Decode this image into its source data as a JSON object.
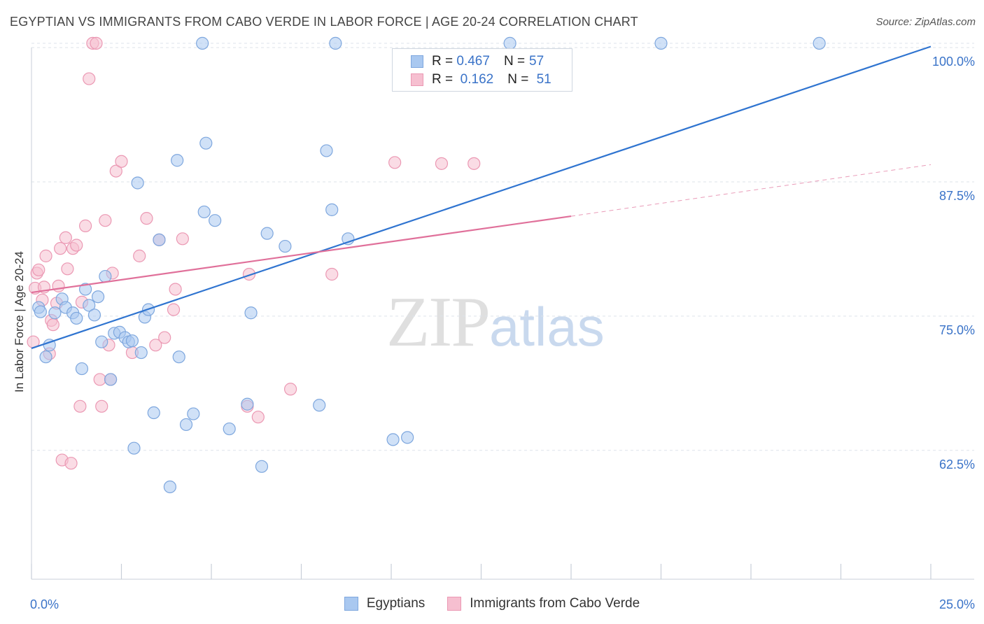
{
  "header": {
    "title": "EGYPTIAN VS IMMIGRANTS FROM CABO VERDE IN LABOR FORCE | AGE 20-24 CORRELATION CHART",
    "source": "Source: ZipAtlas.com"
  },
  "watermark": {
    "zip": "ZIP",
    "atlas": "atlas"
  },
  "legend": {
    "rows": [
      {
        "r_label": "R =",
        "r_value": "0.467",
        "n_label": "N =",
        "n_value": "57"
      },
      {
        "r_label": "R =",
        "r_value": "0.162",
        "n_label": "N =",
        "n_value": "51"
      }
    ]
  },
  "bottom_legend": {
    "egyptians": "Egyptians",
    "cabo_verde": "Immigrants from Cabo Verde"
  },
  "colors": {
    "blue_fill": "#a9c8f0",
    "blue_stroke": "#7ea7de",
    "blue_line": "#2f74d0",
    "pink_fill": "#f6bfd0",
    "pink_stroke": "#eb98b3",
    "pink_line": "#e0709a",
    "tick_label": "#3a73c8",
    "grid": "#dde3ea"
  },
  "chart_data": {
    "type": "scatter",
    "title": "EGYPTIAN VS IMMIGRANTS FROM CABO VERDE IN LABOR FORCE | AGE 20-24 CORRELATION CHART",
    "xlabel": "",
    "ylabel": "In Labor Force | Age 20-24",
    "xlim": [
      0,
      25
    ],
    "ylim": [
      50.5,
      101.5
    ],
    "x_tick_labels": [
      {
        "value": 0,
        "label": "0.0%"
      },
      {
        "value": 25,
        "label": "25.0%"
      }
    ],
    "y_ticks": [
      {
        "value": 62.5,
        "label": "62.5%"
      },
      {
        "value": 75.0,
        "label": "75.0%"
      },
      {
        "value": 87.5,
        "label": "87.5%"
      },
      {
        "value": 100.0,
        "label": "100.0%"
      }
    ],
    "grid": true,
    "legend_position": "top-center",
    "series": [
      {
        "name": "Egyptians",
        "color": "#a9c8f0",
        "trend": {
          "x": [
            0,
            25
          ],
          "y": [
            72.0,
            100.1
          ]
        },
        "points": [
          {
            "x": 0.2,
            "y": 75.8
          },
          {
            "x": 0.25,
            "y": 75.4
          },
          {
            "x": 0.4,
            "y": 71.2
          },
          {
            "x": 0.5,
            "y": 72.3
          },
          {
            "x": 0.65,
            "y": 75.3
          },
          {
            "x": 0.85,
            "y": 76.6
          },
          {
            "x": 0.95,
            "y": 75.8
          },
          {
            "x": 1.15,
            "y": 75.3
          },
          {
            "x": 1.25,
            "y": 74.8
          },
          {
            "x": 1.4,
            "y": 70.1
          },
          {
            "x": 1.5,
            "y": 77.5
          },
          {
            "x": 1.6,
            "y": 76.0
          },
          {
            "x": 1.75,
            "y": 75.1
          },
          {
            "x": 1.85,
            "y": 76.8
          },
          {
            "x": 1.95,
            "y": 72.6
          },
          {
            "x": 2.05,
            "y": 78.7
          },
          {
            "x": 2.2,
            "y": 69.1
          },
          {
            "x": 2.3,
            "y": 73.4
          },
          {
            "x": 2.45,
            "y": 73.5
          },
          {
            "x": 2.6,
            "y": 73.0
          },
          {
            "x": 2.7,
            "y": 72.6
          },
          {
            "x": 2.8,
            "y": 72.7
          },
          {
            "x": 2.85,
            "y": 62.7
          },
          {
            "x": 2.95,
            "y": 87.4
          },
          {
            "x": 3.05,
            "y": 71.6
          },
          {
            "x": 3.15,
            "y": 74.9
          },
          {
            "x": 3.25,
            "y": 75.6
          },
          {
            "x": 3.4,
            "y": 66.0
          },
          {
            "x": 3.55,
            "y": 82.1
          },
          {
            "x": 3.85,
            "y": 59.1
          },
          {
            "x": 4.05,
            "y": 89.5
          },
          {
            "x": 4.1,
            "y": 71.2
          },
          {
            "x": 4.3,
            "y": 64.9
          },
          {
            "x": 4.5,
            "y": 65.9
          },
          {
            "x": 4.75,
            "y": 100.4
          },
          {
            "x": 4.8,
            "y": 84.7
          },
          {
            "x": 4.85,
            "y": 91.1
          },
          {
            "x": 5.1,
            "y": 83.9
          },
          {
            "x": 5.5,
            "y": 64.5
          },
          {
            "x": 6.0,
            "y": 66.8
          },
          {
            "x": 6.1,
            "y": 75.3
          },
          {
            "x": 6.4,
            "y": 61.0
          },
          {
            "x": 6.55,
            "y": 82.7
          },
          {
            "x": 7.05,
            "y": 81.5
          },
          {
            "x": 8.0,
            "y": 66.7
          },
          {
            "x": 8.2,
            "y": 90.4
          },
          {
            "x": 8.35,
            "y": 84.9
          },
          {
            "x": 8.45,
            "y": 100.4
          },
          {
            "x": 8.8,
            "y": 82.2
          },
          {
            "x": 10.05,
            "y": 63.5
          },
          {
            "x": 10.45,
            "y": 63.7
          },
          {
            "x": 13.3,
            "y": 100.4
          },
          {
            "x": 17.5,
            "y": 100.4
          },
          {
            "x": 21.9,
            "y": 100.4
          }
        ]
      },
      {
        "name": "Immigrants from Cabo Verde",
        "color": "#f6bfd0",
        "trend": {
          "x": [
            0,
            15
          ],
          "y": [
            77.2,
            84.3
          ],
          "dashed_to": {
            "x": 25,
            "y": 89.1
          }
        },
        "points": [
          {
            "x": 0.05,
            "y": 72.6
          },
          {
            "x": 0.1,
            "y": 77.6
          },
          {
            "x": 0.15,
            "y": 79.0
          },
          {
            "x": 0.2,
            "y": 79.3
          },
          {
            "x": 0.3,
            "y": 76.5
          },
          {
            "x": 0.35,
            "y": 77.7
          },
          {
            "x": 0.4,
            "y": 80.6
          },
          {
            "x": 0.5,
            "y": 71.5
          },
          {
            "x": 0.55,
            "y": 74.6
          },
          {
            "x": 0.6,
            "y": 74.2
          },
          {
            "x": 0.7,
            "y": 76.2
          },
          {
            "x": 0.75,
            "y": 77.8
          },
          {
            "x": 0.8,
            "y": 81.3
          },
          {
            "x": 0.85,
            "y": 61.6
          },
          {
            "x": 0.95,
            "y": 82.3
          },
          {
            "x": 1.0,
            "y": 79.4
          },
          {
            "x": 1.1,
            "y": 61.3
          },
          {
            "x": 1.15,
            "y": 81.3
          },
          {
            "x": 1.25,
            "y": 81.6
          },
          {
            "x": 1.35,
            "y": 66.6
          },
          {
            "x": 1.4,
            "y": 76.3
          },
          {
            "x": 1.5,
            "y": 83.4
          },
          {
            "x": 1.6,
            "y": 97.1
          },
          {
            "x": 1.7,
            "y": 100.4
          },
          {
            "x": 1.8,
            "y": 100.4
          },
          {
            "x": 1.9,
            "y": 69.1
          },
          {
            "x": 1.95,
            "y": 66.6
          },
          {
            "x": 2.05,
            "y": 83.9
          },
          {
            "x": 2.15,
            "y": 72.3
          },
          {
            "x": 2.2,
            "y": 69.1
          },
          {
            "x": 2.25,
            "y": 79.0
          },
          {
            "x": 2.35,
            "y": 88.5
          },
          {
            "x": 2.5,
            "y": 89.4
          },
          {
            "x": 2.8,
            "y": 71.6
          },
          {
            "x": 3.0,
            "y": 80.6
          },
          {
            "x": 3.2,
            "y": 84.1
          },
          {
            "x": 3.45,
            "y": 72.3
          },
          {
            "x": 3.55,
            "y": 82.1
          },
          {
            "x": 3.7,
            "y": 73.0
          },
          {
            "x": 3.95,
            "y": 75.6
          },
          {
            "x": 4.0,
            "y": 77.5
          },
          {
            "x": 4.2,
            "y": 82.2
          },
          {
            "x": 6.0,
            "y": 66.6
          },
          {
            "x": 6.05,
            "y": 78.9
          },
          {
            "x": 6.3,
            "y": 65.6
          },
          {
            "x": 7.2,
            "y": 68.2
          },
          {
            "x": 8.35,
            "y": 78.9
          },
          {
            "x": 10.1,
            "y": 89.3
          },
          {
            "x": 11.4,
            "y": 89.2
          },
          {
            "x": 12.3,
            "y": 89.2
          }
        ]
      }
    ]
  }
}
